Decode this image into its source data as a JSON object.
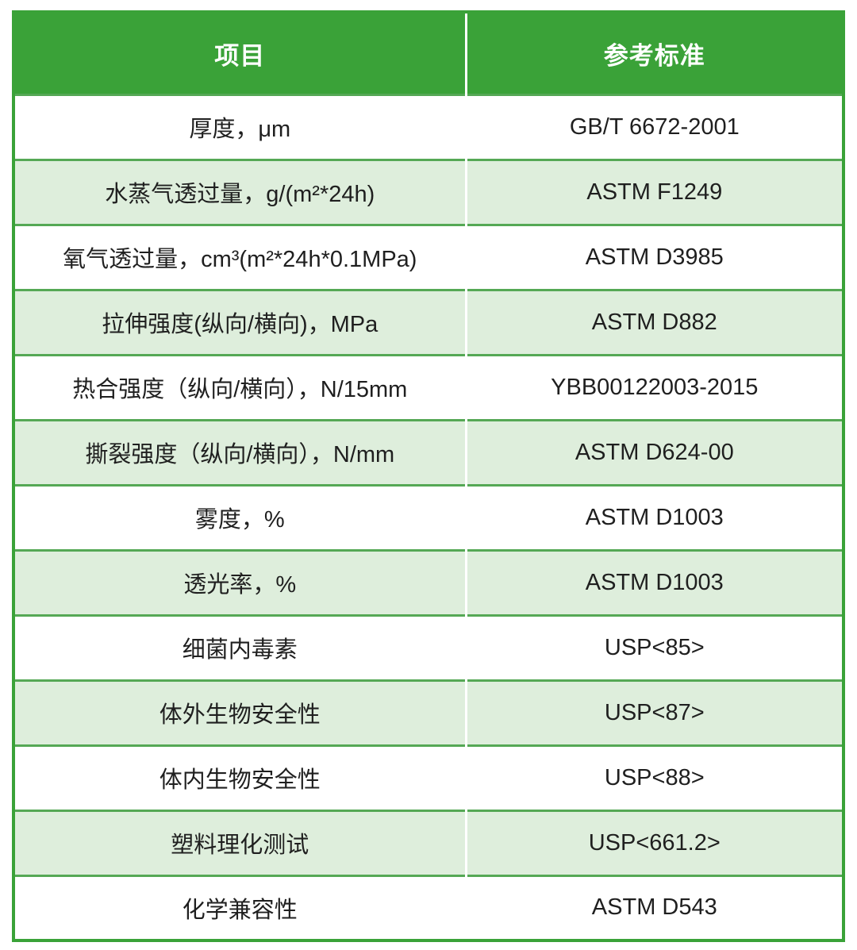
{
  "table": {
    "columns": [
      {
        "label": "项目"
      },
      {
        "label": "参考标准"
      }
    ],
    "rows": [
      {
        "item": "厚度，μm",
        "standard": "GB/T 6672-2001"
      },
      {
        "item": "水蒸气透过量，g/(m²*24h)",
        "standard": "ASTM F1249"
      },
      {
        "item": "氧气透过量，cm³(m²*24h*0.1MPa)",
        "standard": "ASTM D3985"
      },
      {
        "item": "拉伸强度(纵向/横向)，MPa",
        "standard": "ASTM D882"
      },
      {
        "item": "热合强度（纵向/横向），N/15mm",
        "standard": "YBB00122003-2015"
      },
      {
        "item": "撕裂强度（纵向/横向），N/mm",
        "standard": "ASTM D624-00"
      },
      {
        "item": "雾度，%",
        "standard": "ASTM D1003"
      },
      {
        "item": "透光率，%",
        "standard": "ASTM D1003"
      },
      {
        "item": "细菌内毒素",
        "standard": "USP<85>"
      },
      {
        "item": "体外生物安全性",
        "standard": "USP<87>"
      },
      {
        "item": "体内生物安全性",
        "standard": "USP<88>"
      },
      {
        "item": "塑料理化测试",
        "standard": "USP<661.2>"
      },
      {
        "item": "化学兼容性",
        "standard": "ASTM D543"
      }
    ]
  },
  "colors": {
    "header_bg": "#3aa238",
    "header_text": "#ffffff",
    "row_bg": "#ffffff",
    "row_alt_bg": "#deeedc",
    "rule": "#55a855",
    "outer": "#3aa238",
    "divider": "#ffffff",
    "body_text": "#1f1f1f"
  }
}
